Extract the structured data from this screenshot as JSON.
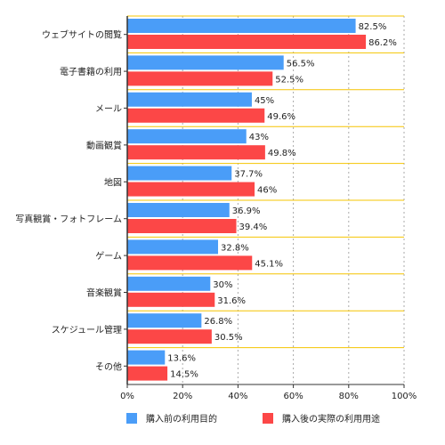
{
  "chart_data": {
    "type": "bar",
    "orientation": "horizontal",
    "categories": [
      "ウェブサイトの閲覧",
      "電子書籍の利用",
      "メール",
      "動画観賞",
      "地図",
      "写真観賞・フォトフレーム",
      "ゲーム",
      "音楽観賞",
      "スケジュール管理",
      "その他"
    ],
    "series": [
      {
        "name": "購入前の利用目的",
        "values": [
          82.5,
          56.5,
          45,
          43,
          37.7,
          36.9,
          32.8,
          30,
          26.8,
          13.6
        ],
        "labels": [
          "82.5%",
          "56.5%",
          "45%",
          "43%",
          "37.7%",
          "36.9%",
          "32.8%",
          "30%",
          "26.8%",
          "13.6%"
        ]
      },
      {
        "name": "購入後の実際の利用用途",
        "values": [
          86.2,
          52.5,
          49.6,
          49.8,
          46,
          39.4,
          45.1,
          31.6,
          30.5,
          14.5
        ],
        "labels": [
          "86.2%",
          "52.5%",
          "49.6%",
          "49.8%",
          "46%",
          "39.4%",
          "45.1%",
          "31.6%",
          "30.5%",
          "14.5%"
        ]
      }
    ],
    "xticks": [
      0,
      20,
      40,
      60,
      80,
      100
    ],
    "xtick_labels": [
      "0%",
      "20%",
      "40%",
      "60%",
      "80%",
      "100%"
    ],
    "xlim": [
      0,
      100
    ],
    "grid": "vertical dotted",
    "legend_position": "bottom",
    "colors": {
      "series1": "#4a9df8",
      "series2": "#fc4747",
      "grid": "#aaaaaa",
      "axis": "#333333",
      "band_separator": "#f5c400"
    }
  }
}
